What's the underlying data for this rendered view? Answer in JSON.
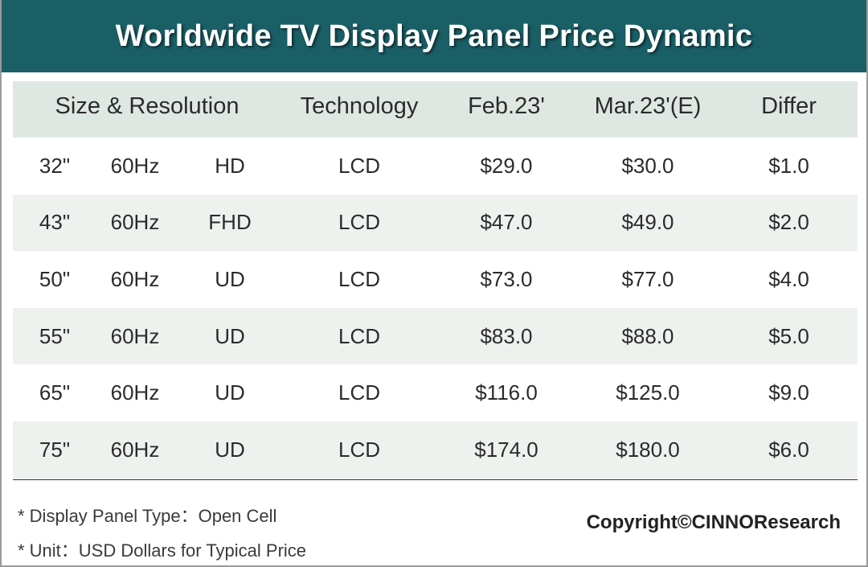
{
  "title": "Worldwide TV Display Panel Price Dynamic",
  "colors": {
    "title_bg": "#1a5f66",
    "header_bg": "#dfe7e2",
    "shaded_row_bg": "#eef2ef"
  },
  "chart_data": {
    "type": "table",
    "title": "Worldwide TV Display Panel Price Dynamic",
    "columns": [
      "Size & Resolution",
      "Technology",
      "Feb.23'",
      "Mar.23'(E)",
      "Differ"
    ],
    "rows": [
      {
        "size": "32\"",
        "refresh": "60Hz",
        "resolution": "HD",
        "technology": "LCD",
        "feb": "$29.0",
        "mar": "$30.0",
        "differ": "$1.0"
      },
      {
        "size": "43\"",
        "refresh": "60Hz",
        "resolution": "FHD",
        "technology": "LCD",
        "feb": "$47.0",
        "mar": "$49.0",
        "differ": "$2.0"
      },
      {
        "size": "50\"",
        "refresh": "60Hz",
        "resolution": "UD",
        "technology": "LCD",
        "feb": "$73.0",
        "mar": "$77.0",
        "differ": "$4.0"
      },
      {
        "size": "55\"",
        "refresh": "60Hz",
        "resolution": "UD",
        "technology": "LCD",
        "feb": "$83.0",
        "mar": "$88.0",
        "differ": "$5.0"
      },
      {
        "size": "65\"",
        "refresh": "60Hz",
        "resolution": "UD",
        "technology": "LCD",
        "feb": "$116.0",
        "mar": "$125.0",
        "differ": "$9.0"
      },
      {
        "size": "75\"",
        "refresh": "60Hz",
        "resolution": "UD",
        "technology": "LCD",
        "feb": "$174.0",
        "mar": "$180.0",
        "differ": "$6.0"
      }
    ]
  },
  "notes": [
    "* Display Panel Type：Open Cell",
    "* Unit：USD Dollars for Typical Price"
  ],
  "copyright": "Copyright©CINNOResearch"
}
